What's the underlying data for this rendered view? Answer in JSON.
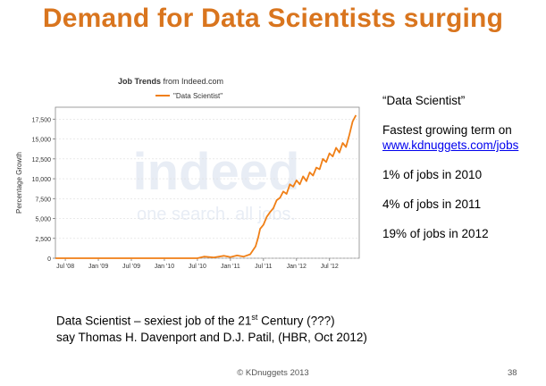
{
  "slide": {
    "title": "Demand for Data Scientists surging",
    "footer": "© KDnuggets 2013",
    "page_number": "38"
  },
  "side_notes": {
    "term": "“Data Scientist”",
    "fastest_line": "Fastest growing term on",
    "link": "www.kdnuggets.com/jobs",
    "stat_2010": "1% of jobs in 2010",
    "stat_2011": "4% of jobs in 2011",
    "stat_2012": "19% of jobs in 2012"
  },
  "quote": {
    "line1_pre": "Data Scientist – sexiest job of the 21",
    "line1_sup": "st",
    "line1_post": " Century  (???)",
    "line2": "say Thomas H. Davenport and D.J. Patil, (HBR, Oct 2012)"
  },
  "chart_data": {
    "type": "line",
    "title": "Job Trends from Indeed.com",
    "title_bold": "Job Trends",
    "title_rest": " from Indeed.com",
    "ylabel": "Percentage Growth",
    "watermark": "indeed",
    "watermark_tagline": "one search. all jobs.",
    "ylim": [
      0,
      19000
    ],
    "yticks": [
      0,
      2500,
      5000,
      7500,
      10000,
      12500,
      15000,
      17500
    ],
    "ytick_labels": [
      "0",
      "2,500",
      "5,000",
      "7,500",
      "10,000",
      "12,500",
      "15,000",
      "17,500"
    ],
    "xlim": [
      2008.35,
      2012.95
    ],
    "xticks": [
      2008.5,
      2009.0,
      2009.5,
      2010.0,
      2010.5,
      2011.0,
      2011.5,
      2012.0,
      2012.5
    ],
    "xtick_labels": [
      "Jul '08",
      "Jan '09",
      "Jul '09",
      "Jan '10",
      "Jul '10",
      "Jan '11",
      "Jul '11",
      "Jan '12",
      "Jul '12"
    ],
    "legend": "top-left",
    "line_color": "#f07f16",
    "series": [
      {
        "name": "\"Data Scientist\"",
        "x": [
          2008.35,
          2009.0,
          2009.5,
          2010.0,
          2010.5,
          2010.6,
          2010.75,
          2010.9,
          2011.0,
          2011.1,
          2011.2,
          2011.3,
          2011.38,
          2011.42,
          2011.45,
          2011.5,
          2011.55,
          2011.6,
          2011.65,
          2011.7,
          2011.75,
          2011.8,
          2011.85,
          2011.9,
          2011.95,
          2012.0,
          2012.05,
          2012.1,
          2012.15,
          2012.2,
          2012.25,
          2012.3,
          2012.35,
          2012.4,
          2012.45,
          2012.5,
          2012.55,
          2012.6,
          2012.65,
          2012.7,
          2012.75,
          2012.8,
          2012.85,
          2012.9
        ],
        "y": [
          0,
          0,
          0,
          0,
          0,
          200,
          100,
          300,
          150,
          350,
          200,
          500,
          1500,
          2600,
          3700,
          4200,
          5200,
          5800,
          6300,
          7300,
          7600,
          8400,
          8100,
          9300,
          9000,
          9800,
          9300,
          10300,
          9700,
          10800,
          10400,
          11400,
          11200,
          12500,
          12100,
          13200,
          12800,
          13900,
          13300,
          14500,
          14000,
          15500,
          17200,
          18000
        ]
      }
    ]
  }
}
